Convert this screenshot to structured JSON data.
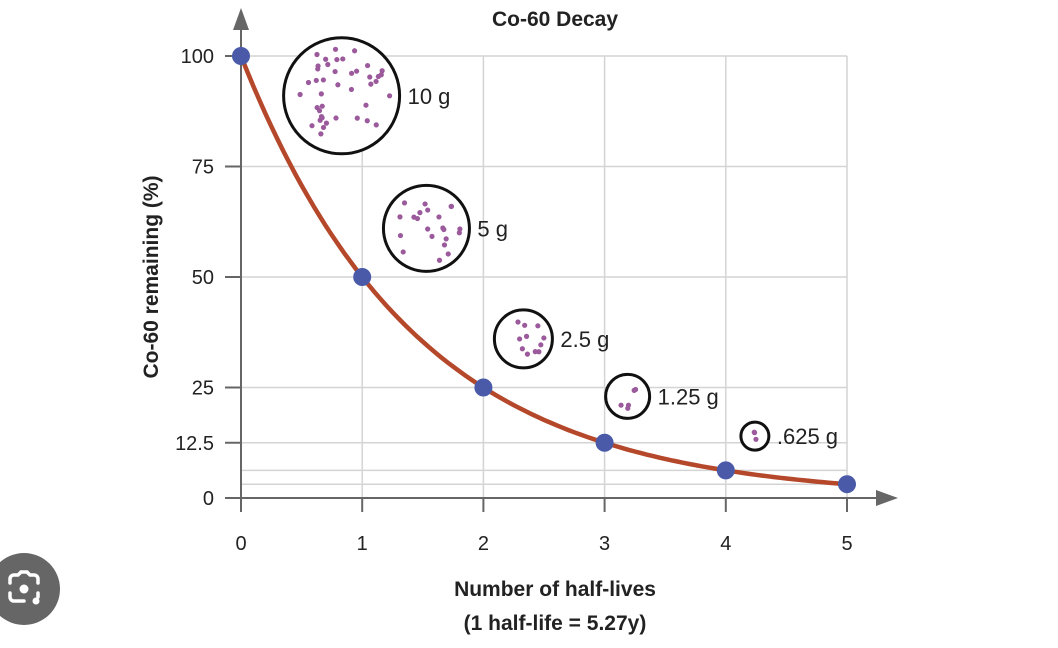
{
  "chart_data": {
    "type": "line",
    "title": "Co-60 Decay",
    "xlabel": "Number of half-lives",
    "xlabel2": "(1 half-life = 5.27y)",
    "ylabel": "Co-60 remaining (%)",
    "x": [
      0,
      1,
      2,
      3,
      4,
      5
    ],
    "values": [
      100,
      50,
      25,
      12.5,
      6.25,
      3.125
    ],
    "xticks": [
      "0",
      "1",
      "2",
      "3",
      "4",
      "5"
    ],
    "yticks": [
      100,
      75,
      50,
      25,
      12.5,
      0
    ],
    "ytick_labels": [
      "100",
      "75",
      "50",
      "25",
      "12.5",
      "0"
    ],
    "extra_gridlines": [
      6.25,
      3.125
    ],
    "xlim": [
      0,
      5
    ],
    "ylim": [
      0,
      100
    ],
    "grid": true,
    "annotations": [
      {
        "label": "10 g",
        "at_x": 0.83,
        "at_y": 91
      },
      {
        "label": "5 g",
        "at_x": 1.53,
        "at_y": 61
      },
      {
        "label": "2.5 g",
        "at_x": 2.33,
        "at_y": 36
      },
      {
        "label": "1.25 g",
        "at_x": 3.19,
        "at_y": 23
      },
      {
        "label": ".625 g",
        "at_x": 4.24,
        "at_y": 14
      }
    ],
    "colors": {
      "curve": "#b5482a",
      "points": "#4a5aa8",
      "sample_dots": "#9b5a9b",
      "grid": "#d4d4d4",
      "axis": "#666666"
    }
  },
  "overlay": {
    "icon": "google-lens-camera-icon"
  }
}
